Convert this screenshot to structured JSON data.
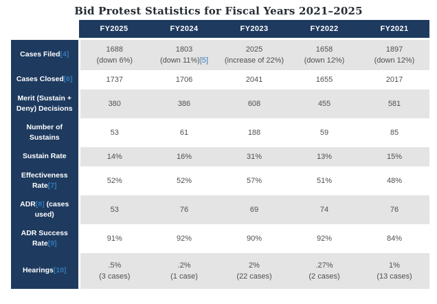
{
  "title": "Bid Protest Statistics for Fiscal Years 2021–2025",
  "colors": {
    "navy": "#1e3a5f",
    "stripe_gray": "#e4e4e4",
    "footnote_link_blue": "#337ab7",
    "value_text": "#4f4f4f",
    "title_text": "#252c34"
  },
  "table": {
    "columns": [
      "FY2025",
      "FY2024",
      "FY2023",
      "FY2022",
      "FY2021"
    ],
    "rows": [
      {
        "id": "cases-filed",
        "label": [
          {
            "t": "Cases Filed"
          },
          {
            "t": "[4]",
            "fn": true
          }
        ],
        "cells": [
          [
            "1688",
            "(down 6%)"
          ],
          [
            "1803",
            [
              {
                "t": "(down 11%)"
              },
              {
                "t": "[5]",
                "fn": true
              }
            ]
          ],
          [
            "2025",
            "(increase of 22%)"
          ],
          [
            "1658",
            "(down 12%)"
          ],
          [
            "1897",
            "(down 12%)"
          ]
        ]
      },
      {
        "id": "cases-closed",
        "label": [
          {
            "t": "Cases Closed"
          },
          {
            "t": "[6]",
            "fn": true
          }
        ],
        "cells": [
          [
            "1737"
          ],
          [
            "1706"
          ],
          [
            "2041"
          ],
          [
            "1655"
          ],
          [
            "2017"
          ]
        ]
      },
      {
        "id": "merit-decisions",
        "label": [
          {
            "t": "Merit (Sustain + Deny) Decisions"
          }
        ],
        "cells": [
          [
            "380"
          ],
          [
            "386"
          ],
          [
            "608"
          ],
          [
            "455"
          ],
          [
            "581"
          ]
        ]
      },
      {
        "id": "number-of-sustains",
        "label": [
          {
            "t": "Number of Sustains"
          }
        ],
        "cells": [
          [
            "53"
          ],
          [
            "61"
          ],
          [
            "188"
          ],
          [
            "59"
          ],
          [
            "85"
          ]
        ]
      },
      {
        "id": "sustain-rate",
        "label": [
          {
            "t": "Sustain Rate"
          }
        ],
        "cells": [
          [
            "14%"
          ],
          [
            "16%"
          ],
          [
            "31%"
          ],
          [
            "13%"
          ],
          [
            "15%"
          ]
        ]
      },
      {
        "id": "effectiveness-rate",
        "label": [
          {
            "t": "Effectiveness Rate"
          },
          {
            "t": "[7]",
            "fn": true
          }
        ],
        "cells": [
          [
            "52%"
          ],
          [
            "52%"
          ],
          [
            "57%"
          ],
          [
            "51%"
          ],
          [
            "48%"
          ]
        ]
      },
      {
        "id": "adr-cases-used",
        "label": [
          {
            "t": "ADR"
          },
          {
            "t": "[8]",
            "fn": true
          },
          {
            "t": " (cases used)"
          }
        ],
        "cells": [
          [
            "53"
          ],
          [
            "76"
          ],
          [
            "69"
          ],
          [
            "74"
          ],
          [
            "76"
          ]
        ]
      },
      {
        "id": "adr-success-rate",
        "label": [
          {
            "t": "ADR Success Rate"
          },
          {
            "t": "[9]",
            "fn": true
          }
        ],
        "cells": [
          [
            "91%"
          ],
          [
            "92%"
          ],
          [
            "90%"
          ],
          [
            "92%"
          ],
          [
            "84%"
          ]
        ]
      },
      {
        "id": "hearings",
        "label": [
          {
            "t": "Hearings"
          },
          {
            "t": "[10]",
            "fn": true
          }
        ],
        "tall": true,
        "cells": [
          [
            ".5%",
            "(3 cases)"
          ],
          [
            ".2%",
            "(1 case)"
          ],
          [
            "2%",
            "(22 cases)"
          ],
          [
            ".27%",
            "(2 cases)"
          ],
          [
            "1%",
            "(13 cases)"
          ]
        ]
      }
    ]
  },
  "chart_data": {
    "type": "table",
    "title": "Bid Protest Statistics for Fiscal Years 2021–2025",
    "columns": [
      "FY2025",
      "FY2024",
      "FY2023",
      "FY2022",
      "FY2021"
    ],
    "rows": [
      {
        "metric": "Cases Filed[4]",
        "values": [
          "1688 (down 6%)",
          "1803 (down 11%)[5]",
          "2025 (increase of 22%)",
          "1658 (down 12%)",
          "1897 (down 12%)"
        ]
      },
      {
        "metric": "Cases Closed[6]",
        "values": [
          "1737",
          "1706",
          "2041",
          "1655",
          "2017"
        ]
      },
      {
        "metric": "Merit (Sustain + Deny) Decisions",
        "values": [
          "380",
          "386",
          "608",
          "455",
          "581"
        ]
      },
      {
        "metric": "Number of Sustains",
        "values": [
          "53",
          "61",
          "188",
          "59",
          "85"
        ]
      },
      {
        "metric": "Sustain Rate",
        "values": [
          "14%",
          "16%",
          "31%",
          "13%",
          "15%"
        ]
      },
      {
        "metric": "Effectiveness Rate[7]",
        "values": [
          "52%",
          "52%",
          "57%",
          "51%",
          "48%"
        ]
      },
      {
        "metric": "ADR[8] (cases used)",
        "values": [
          "53",
          "76",
          "69",
          "74",
          "76"
        ]
      },
      {
        "metric": "ADR Success Rate[9]",
        "values": [
          "91%",
          "92%",
          "90%",
          "92%",
          "84%"
        ]
      },
      {
        "metric": "Hearings[10]",
        "values": [
          ".5% (3 cases)",
          ".2% (1 case)",
          "2% (22 cases)",
          ".27% (2 cases)",
          "1% (13 cases)"
        ]
      }
    ]
  }
}
